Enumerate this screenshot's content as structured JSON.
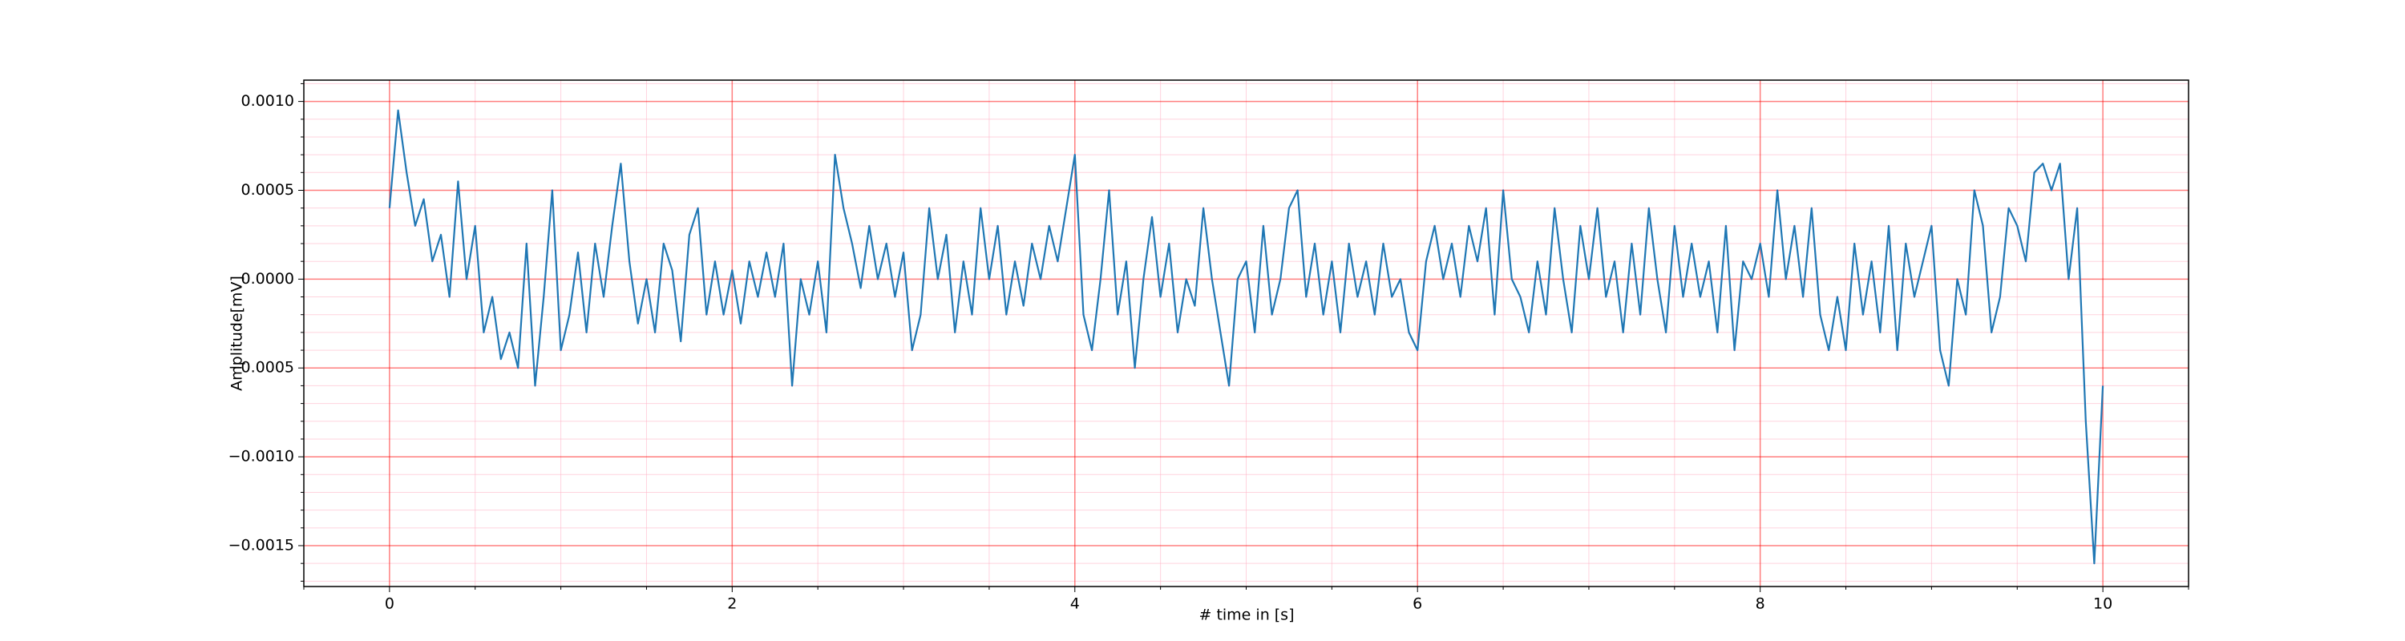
{
  "chart_data": {
    "type": "line",
    "xlabel": "# time in [s]",
    "ylabel": "Amplitude[mV]",
    "x": [
      0,
      0.05,
      0.1,
      0.15,
      0.2,
      0.25,
      0.3,
      0.35,
      0.4,
      0.45,
      0.5,
      0.55,
      0.6,
      0.65,
      0.7,
      0.75,
      0.8,
      0.85,
      0.9,
      0.95,
      1,
      1.05,
      1.1,
      1.15,
      1.2,
      1.25,
      1.3,
      1.35,
      1.4,
      1.45,
      1.5,
      1.55,
      1.6,
      1.65,
      1.7,
      1.75,
      1.8,
      1.85,
      1.9,
      1.95,
      2,
      2.05,
      2.1,
      2.15,
      2.2,
      2.25,
      2.3,
      2.35,
      2.4,
      2.45,
      2.5,
      2.55,
      2.6,
      2.65,
      2.7,
      2.75,
      2.8,
      2.85,
      2.9,
      2.95,
      3,
      3.05,
      3.1,
      3.15,
      3.2,
      3.25,
      3.3,
      3.35,
      3.4,
      3.45,
      3.5,
      3.55,
      3.6,
      3.65,
      3.7,
      3.75,
      3.8,
      3.85,
      3.9,
      3.95,
      4,
      4.05,
      4.1,
      4.15,
      4.2,
      4.25,
      4.3,
      4.35,
      4.4,
      4.45,
      4.5,
      4.55,
      4.6,
      4.65,
      4.7,
      4.75,
      4.8,
      4.85,
      4.9,
      4.95,
      5,
      5.05,
      5.1,
      5.15,
      5.2,
      5.25,
      5.3,
      5.35,
      5.4,
      5.45,
      5.5,
      5.55,
      5.6,
      5.65,
      5.7,
      5.75,
      5.8,
      5.85,
      5.9,
      5.95,
      6,
      6.05,
      6.1,
      6.15,
      6.2,
      6.25,
      6.3,
      6.35,
      6.4,
      6.45,
      6.5,
      6.55,
      6.6,
      6.65,
      6.7,
      6.75,
      6.8,
      6.85,
      6.9,
      6.95,
      7,
      7.05,
      7.1,
      7.15,
      7.2,
      7.25,
      7.3,
      7.35,
      7.4,
      7.45,
      7.5,
      7.55,
      7.6,
      7.65,
      7.7,
      7.75,
      7.8,
      7.85,
      7.9,
      7.95,
      8,
      8.05,
      8.1,
      8.15,
      8.2,
      8.25,
      8.3,
      8.35,
      8.4,
      8.45,
      8.5,
      8.55,
      8.6,
      8.65,
      8.7,
      8.75,
      8.8,
      8.85,
      8.9,
      8.95,
      9,
      9.05,
      9.1,
      9.15,
      9.2,
      9.25,
      9.3,
      9.35,
      9.4,
      9.45,
      9.5,
      9.55,
      9.6,
      9.65,
      9.7,
      9.75,
      9.8,
      9.85,
      9.9,
      9.95,
      10
    ],
    "series": [
      {
        "color": "#1f77b4",
        "values": [
          0.0004,
          0.00095,
          0.0006,
          0.0003,
          0.00045,
          0.0001,
          0.00025,
          -0.0001,
          0.00055,
          0,
          0.0003,
          -0.0003,
          -0.0001,
          -0.00045,
          -0.0003,
          -0.0005,
          0.0002,
          -0.0006,
          -0.0001,
          0.0005,
          -0.0004,
          -0.0002,
          0.00015,
          -0.0003,
          0.0002,
          -0.0001,
          0.0003,
          0.00065,
          0.0001,
          -0.00025,
          0,
          -0.0003,
          0.0002,
          5e-05,
          -0.00035,
          0.00025,
          0.0004,
          -0.0002,
          0.0001,
          -0.0002,
          5e-05,
          -0.00025,
          0.0001,
          -0.0001,
          0.00015,
          -0.0001,
          0.0002,
          -0.0006,
          0,
          -0.0002,
          0.0001,
          -0.0003,
          0.0007,
          0.0004,
          0.0002,
          -5e-05,
          0.0003,
          0,
          0.0002,
          -0.0001,
          0.00015,
          -0.0004,
          -0.0002,
          0.0004,
          0,
          0.00025,
          -0.0003,
          0.0001,
          -0.0002,
          0.0004,
          0,
          0.0003,
          -0.0002,
          0.0001,
          -0.00015,
          0.0002,
          0,
          0.0003,
          0.0001,
          0.0004,
          0.0007,
          -0.0002,
          -0.0004,
          0,
          0.0005,
          -0.0002,
          0.0001,
          -0.0005,
          0,
          0.00035,
          -0.0001,
          0.0002,
          -0.0003,
          0,
          -0.00015,
          0.0004,
          0,
          -0.0003,
          -0.0006,
          0,
          0.0001,
          -0.0003,
          0.0003,
          -0.0002,
          0,
          0.0004,
          0.0005,
          -0.0001,
          0.0002,
          -0.0002,
          0.0001,
          -0.0003,
          0.0002,
          -0.0001,
          0.0001,
          -0.0002,
          0.0002,
          -0.0001,
          0,
          -0.0003,
          -0.0004,
          0.0001,
          0.0003,
          0,
          0.0002,
          -0.0001,
          0.0003,
          0.0001,
          0.0004,
          -0.0002,
          0.0005,
          0,
          -0.0001,
          -0.0003,
          0.0001,
          -0.0002,
          0.0004,
          0,
          -0.0003,
          0.0003,
          0,
          0.0004,
          -0.0001,
          0.0001,
          -0.0003,
          0.0002,
          -0.0002,
          0.0004,
          0,
          -0.0003,
          0.0003,
          -0.0001,
          0.0002,
          -0.0001,
          0.0001,
          -0.0003,
          0.0003,
          -0.0004,
          0.0001,
          0,
          0.0002,
          -0.0001,
          0.0005,
          0,
          0.0003,
          -0.0001,
          0.0004,
          -0.0002,
          -0.0004,
          -0.0001,
          -0.0004,
          0.0002,
          -0.0002,
          0.0001,
          -0.0003,
          0.0003,
          -0.0004,
          0.0002,
          -0.0001,
          0.0001,
          0.0003,
          -0.0004,
          -0.0006,
          0,
          -0.0002,
          0.0005,
          0.0003,
          -0.0003,
          -0.0001,
          0.0004,
          0.0003,
          0.0001,
          0.0006,
          0.00065,
          0.0005,
          0.00065,
          0,
          0.0004,
          -0.0008,
          -0.0016,
          -0.0006
        ]
      }
    ],
    "xlim": [
      -0.5,
      10.5
    ],
    "ylim": [
      -0.00173,
      0.00112
    ],
    "xticks": [
      0,
      2,
      4,
      6,
      8,
      10
    ],
    "yticks": [
      {
        "value": -0.0015,
        "label": "−0.0015"
      },
      {
        "value": -0.001,
        "label": "−0.0010"
      },
      {
        "value": -0.0005,
        "label": "−0.0005"
      },
      {
        "value": 0,
        "label": "0.0000"
      },
      0.0005,
      {
        "value": 0.001,
        "label": "0.0010"
      }
    ],
    "xminorticks": [
      -0.5,
      0.5,
      1,
      1.5,
      2.5,
      3,
      3.5,
      4.5,
      5,
      5.5,
      6.5,
      7,
      7.5,
      8.5,
      9,
      9.5,
      10.5
    ],
    "yminorticks": [
      -0.0017,
      -0.0016,
      -0.0014,
      -0.0013,
      -0.0012,
      -0.0011,
      -0.0009,
      -0.0008,
      -0.0007,
      -0.0006,
      -0.0004,
      -0.0003,
      -0.0002,
      -0.0001,
      0.0001,
      0.0002,
      0.0003,
      0.0004,
      0.0006,
      0.0007,
      0.0008,
      0.0009,
      0.0011
    ],
    "grid": true,
    "minor_grid": true,
    "grid_color": "#ff0000",
    "minor_grid_color": "#ffb6c8"
  }
}
